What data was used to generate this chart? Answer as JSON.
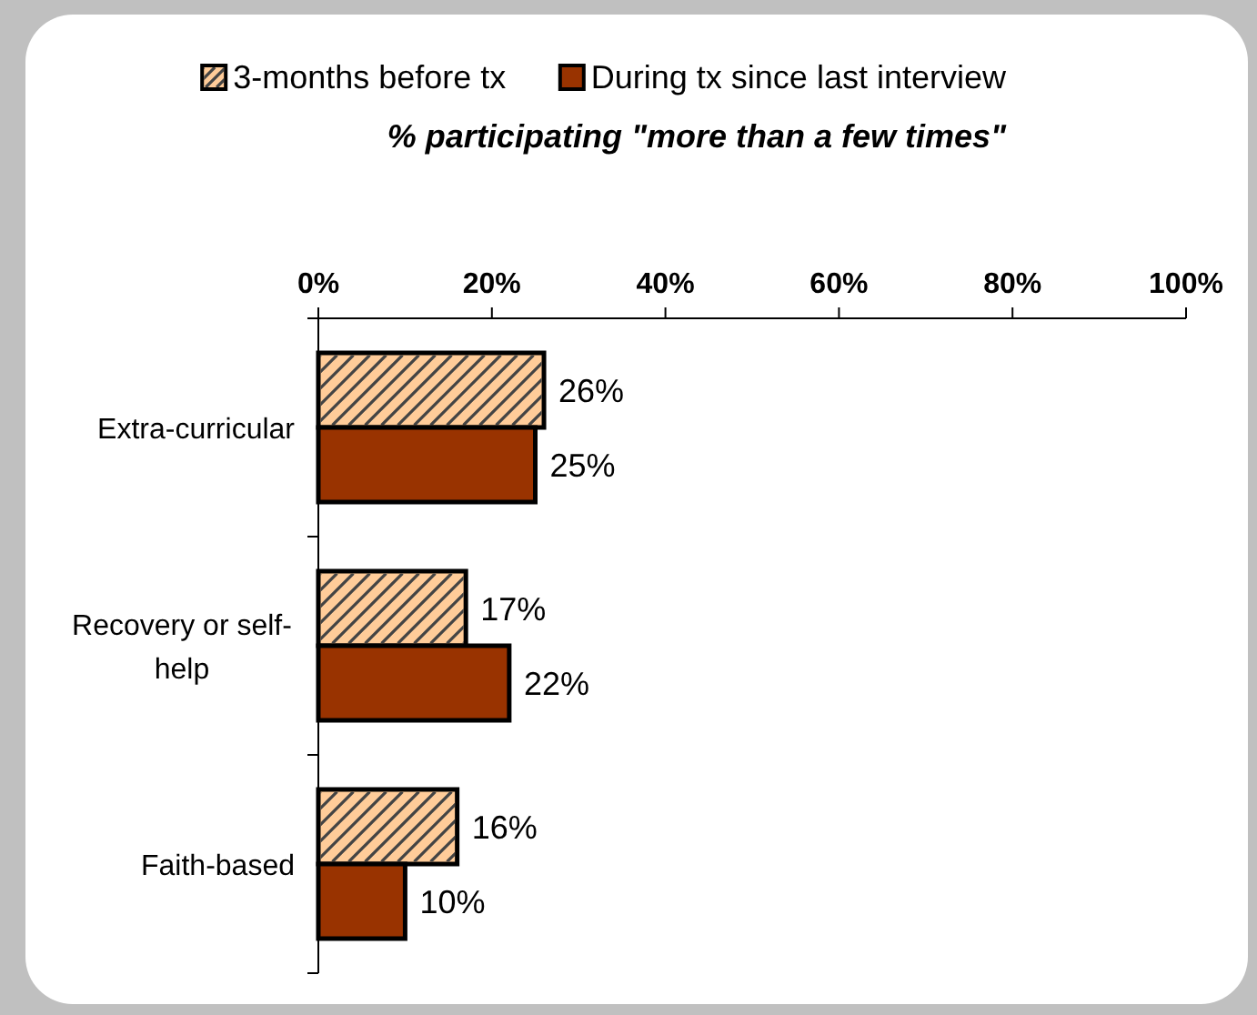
{
  "chart_data": {
    "type": "bar",
    "orientation": "horizontal",
    "title": "% participating \"more than a few times\"",
    "categories": [
      "Extra-curricular",
      "Recovery or self-help",
      "Faith-based"
    ],
    "series": [
      {
        "name": "3-months before tx",
        "color": "#ffcc99",
        "values": [
          26,
          17,
          16
        ],
        "value_labels": [
          "26%",
          "17%",
          "16%"
        ]
      },
      {
        "name": "During tx since last interview",
        "color": "#993300",
        "values": [
          25,
          22,
          10
        ],
        "value_labels": [
          "25%",
          "22%",
          "10%"
        ]
      }
    ],
    "xlim": [
      0,
      100
    ],
    "xticks": [
      {
        "value": 0,
        "label": "0%"
      },
      {
        "value": 20,
        "label": "20%"
      },
      {
        "value": 40,
        "label": "40%"
      },
      {
        "value": 60,
        "label": "60%"
      },
      {
        "value": 80,
        "label": "80%"
      },
      {
        "value": 100,
        "label": "100%"
      }
    ],
    "legend": "top",
    "grid": false
  }
}
